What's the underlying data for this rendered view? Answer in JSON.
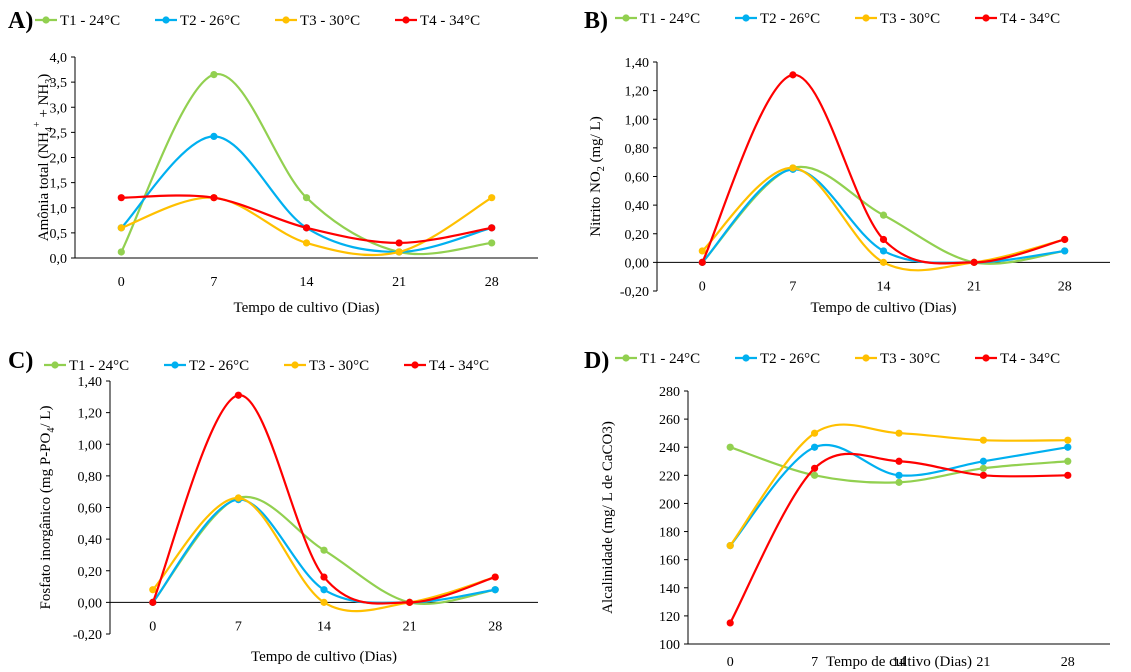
{
  "colors": {
    "t1": "#92d050",
    "t2": "#00b0f0",
    "t3": "#ffc000",
    "t4": "#ff0000",
    "axis": "#000000"
  },
  "chart_data": [
    {
      "panel": "A)",
      "type": "line",
      "categories": [
        "0",
        "7",
        "14",
        "21",
        "28"
      ],
      "xlabel": "Tempo de cultivo (Dias)",
      "ylabel_base": "Amônia total (NH",
      "ylabel_sub1": "4",
      "ylabel_sup1": "+",
      "ylabel_mid": " + NH",
      "ylabel_sub2": "3",
      "ylabel_end": ")",
      "ylim": [
        0,
        4
      ],
      "yticks": [
        "0,0",
        "0,5",
        "1,0",
        "1,5",
        "2,0",
        "2,5",
        "3,0",
        "3,5",
        "4,0"
      ],
      "series": [
        {
          "name": "T1 - 24°C",
          "color": "#92d050",
          "values": [
            0.12,
            3.65,
            1.2,
            0.12,
            0.3
          ]
        },
        {
          "name": "T2 - 26°C",
          "color": "#00b0f0",
          "values": [
            0.6,
            2.42,
            0.6,
            0.12,
            0.6
          ]
        },
        {
          "name": "T3 - 30°C",
          "color": "#ffc000",
          "values": [
            0.6,
            1.2,
            0.3,
            0.12,
            1.2
          ]
        },
        {
          "name": "T4 - 34°C",
          "color": "#ff0000",
          "values": [
            1.2,
            1.2,
            0.6,
            0.3,
            0.6
          ]
        }
      ]
    },
    {
      "panel": "B)",
      "type": "line",
      "categories": [
        "0",
        "7",
        "14",
        "21",
        "28"
      ],
      "xlabel": "Tempo de cultivo (Dias)",
      "ylabel_base": "Nitrito NO",
      "ylabel_sub1": "2",
      "ylabel_end": " (mg/ L)",
      "ylim": [
        -0.2,
        1.4
      ],
      "yticks": [
        "-0,20",
        "0,00",
        "0,20",
        "0,40",
        "0,60",
        "0,80",
        "1,00",
        "1,20",
        "1,40"
      ],
      "series": [
        {
          "name": "T1 - 24°C",
          "color": "#92d050",
          "values": [
            0.0,
            0.66,
            0.33,
            0.0,
            0.08
          ]
        },
        {
          "name": "T2 - 26°C",
          "color": "#00b0f0",
          "values": [
            0.0,
            0.65,
            0.08,
            0.0,
            0.08
          ]
        },
        {
          "name": "T3 - 30°C",
          "color": "#ffc000",
          "values": [
            0.08,
            0.66,
            0.0,
            0.0,
            0.16
          ]
        },
        {
          "name": "T4 - 34°C",
          "color": "#ff0000",
          "values": [
            0.0,
            1.31,
            0.16,
            0.0,
            0.16
          ]
        }
      ]
    },
    {
      "panel": "C)",
      "type": "line",
      "categories": [
        "0",
        "7",
        "14",
        "21",
        "28"
      ],
      "xlabel": "Tempo de cultivo (Dias)",
      "ylabel_base": "Fosfato inorgânico (mg P-PO",
      "ylabel_sub1": "4",
      "ylabel_end": "/ L)",
      "ylim": [
        -0.2,
        1.4
      ],
      "yticks": [
        "-0,20",
        "0,00",
        "0,20",
        "0,40",
        "0,60",
        "0,80",
        "1,00",
        "1,20",
        "1,40"
      ],
      "series": [
        {
          "name": "T1 - 24°C",
          "color": "#92d050",
          "values": [
            0.0,
            0.66,
            0.33,
            0.0,
            0.08
          ]
        },
        {
          "name": "T2 - 26°C",
          "color": "#00b0f0",
          "values": [
            0.0,
            0.65,
            0.08,
            0.0,
            0.08
          ]
        },
        {
          "name": "T3 - 30°C",
          "color": "#ffc000",
          "values": [
            0.08,
            0.66,
            0.0,
            0.0,
            0.16
          ]
        },
        {
          "name": "T4 - 34°C",
          "color": "#ff0000",
          "values": [
            0.0,
            1.31,
            0.16,
            0.0,
            0.16
          ]
        }
      ]
    },
    {
      "panel": "D)",
      "type": "line",
      "categories": [
        "0",
        "7",
        "14",
        "21",
        "28"
      ],
      "xlabel": "Tempo de cultivo (Dias)",
      "ylabel_base": "Alcalinidade (mg/ L de CaCO3)",
      "ylim": [
        100,
        280
      ],
      "yticks": [
        "100",
        "120",
        "140",
        "160",
        "180",
        "200",
        "220",
        "240",
        "260",
        "280"
      ],
      "series": [
        {
          "name": "T1 - 24°C",
          "color": "#92d050",
          "values": [
            240,
            220,
            215,
            225,
            230
          ]
        },
        {
          "name": "T2 - 26°C",
          "color": "#00b0f0",
          "values": [
            170,
            240,
            220,
            230,
            240
          ]
        },
        {
          "name": "T3 - 30°C",
          "color": "#ffc000",
          "values": [
            170,
            250,
            250,
            245,
            245
          ]
        },
        {
          "name": "T4 - 34°C",
          "color": "#ff0000",
          "values": [
            115,
            225,
            230,
            220,
            220
          ]
        }
      ]
    }
  ]
}
